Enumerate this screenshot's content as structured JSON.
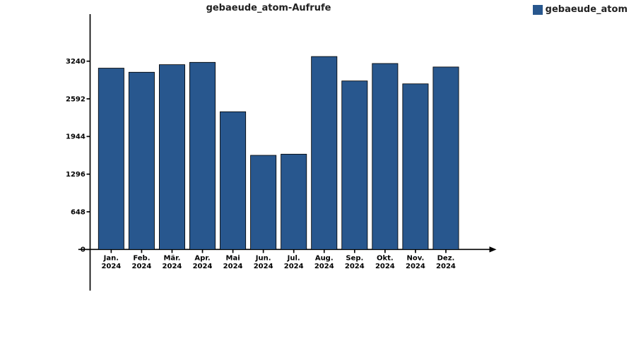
{
  "chart": {
    "type": "bar",
    "title": "gebaeude_atom-Aufrufe",
    "title_fontsize": 13,
    "legend": {
      "label": "gebaeude_atom",
      "swatch_color": "#28578e"
    },
    "background_color": "#ffffff",
    "bar_color": "#28578e",
    "bar_border_color": "#000000",
    "axis_color": "#000000",
    "categories": [
      {
        "l1": "Jan.",
        "l2": "2024"
      },
      {
        "l1": "Feb.",
        "l2": "2024"
      },
      {
        "l1": "Mär.",
        "l2": "2024"
      },
      {
        "l1": "Apr.",
        "l2": "2024"
      },
      {
        "l1": "Mai",
        "l2": "2024"
      },
      {
        "l1": "Jun.",
        "l2": "2024"
      },
      {
        "l1": "Jul.",
        "l2": "2024"
      },
      {
        "l1": "Aug.",
        "l2": "2024"
      },
      {
        "l1": "Sep.",
        "l2": "2024"
      },
      {
        "l1": "Okt.",
        "l2": "2024"
      },
      {
        "l1": "Nov.",
        "l2": "2024"
      },
      {
        "l1": "Dez.",
        "l2": "2024"
      }
    ],
    "values": [
      3120,
      3050,
      3180,
      3220,
      2370,
      1620,
      1640,
      3320,
      2900,
      3200,
      2850,
      3140
    ],
    "y_ticks": [
      0,
      648,
      1296,
      1944,
      2592,
      3240
    ],
    "y_max_plot": 4050,
    "label_fontsize": 12,
    "bar_width_ratio": 0.84
  }
}
